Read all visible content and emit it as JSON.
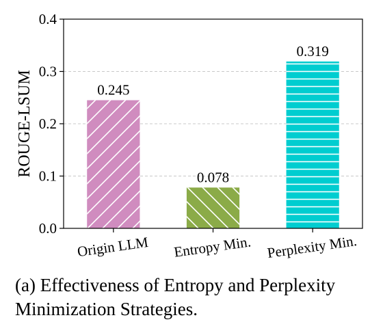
{
  "chart_data": {
    "type": "bar",
    "ylabel": "ROUGE-LSUM",
    "xlabel": "",
    "categories": [
      "Origin LLM",
      "Entropy Min.",
      "Perplexity Min."
    ],
    "values": [
      0.245,
      0.078,
      0.319
    ],
    "data_labels": [
      "0.245",
      "0.078",
      "0.319"
    ],
    "ylim": [
      0,
      0.4
    ],
    "yticks": [
      "0.0",
      "0.1",
      "0.2",
      "0.3",
      "0.4"
    ],
    "grid": "horizontal dashed",
    "colors": [
      "#d08cbf",
      "#8bab48",
      "#00cdd0"
    ],
    "hatches": [
      "diagonal",
      "back-diagonal",
      "horizontal"
    ]
  },
  "caption": {
    "line1": "(a) Effectiveness of Entropy and Perplexity",
    "line2": "Minimization Strategies."
  }
}
